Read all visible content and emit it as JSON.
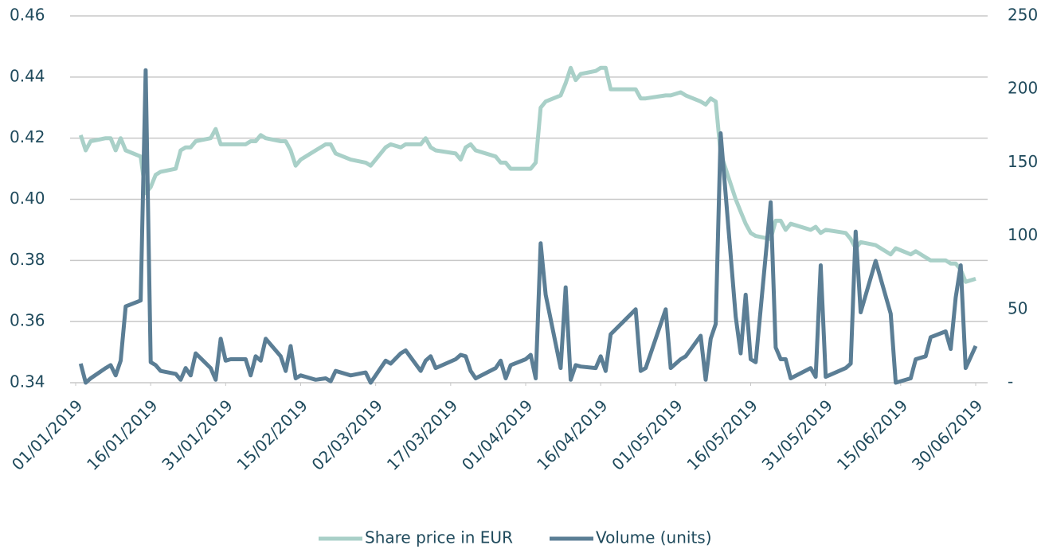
{
  "chart_data": {
    "type": "line",
    "x": [
      "02/01/2019",
      "03/01/2019",
      "04/01/2019",
      "07/01/2019",
      "08/01/2019",
      "09/01/2019",
      "10/01/2019",
      "11/01/2019",
      "14/01/2019",
      "15/01/2019",
      "16/01/2019",
      "17/01/2019",
      "18/01/2019",
      "21/01/2019",
      "22/01/2019",
      "23/01/2019",
      "24/01/2019",
      "25/01/2019",
      "28/01/2019",
      "29/01/2019",
      "30/01/2019",
      "31/01/2019",
      "01/02/2019",
      "04/02/2019",
      "05/02/2019",
      "06/02/2019",
      "07/02/2019",
      "08/02/2019",
      "11/02/2019",
      "12/02/2019",
      "13/02/2019",
      "14/02/2019",
      "15/02/2019",
      "18/02/2019",
      "20/02/2019",
      "21/02/2019",
      "22/02/2019",
      "25/02/2019",
      "28/02/2019",
      "01/03/2019",
      "04/03/2019",
      "05/03/2019",
      "07/03/2019",
      "08/03/2019",
      "11/03/2019",
      "12/03/2019",
      "13/03/2019",
      "14/03/2019",
      "18/03/2019",
      "19/03/2019",
      "20/03/2019",
      "21/03/2019",
      "22/03/2019",
      "26/03/2019",
      "27/03/2019",
      "28/03/2019",
      "29/03/2019",
      "01/04/2019",
      "02/04/2019",
      "03/04/2019",
      "04/04/2019",
      "05/04/2019",
      "08/04/2019",
      "09/04/2019",
      "10/04/2019",
      "11/04/2019",
      "12/04/2019",
      "15/04/2019",
      "16/04/2019",
      "17/04/2019",
      "18/04/2019",
      "23/04/2019",
      "24/04/2019",
      "25/04/2019",
      "29/04/2019",
      "30/04/2019",
      "02/05/2019",
      "03/05/2019",
      "06/05/2019",
      "07/05/2019",
      "08/05/2019",
      "09/05/2019",
      "10/05/2019",
      "13/05/2019",
      "14/05/2019",
      "15/05/2019",
      "16/05/2019",
      "17/05/2019",
      "20/05/2019",
      "21/05/2019",
      "22/05/2019",
      "23/05/2019",
      "24/05/2019",
      "28/05/2019",
      "29/05/2019",
      "30/05/2019",
      "31/05/2019",
      "04/06/2019",
      "05/06/2019",
      "06/06/2019",
      "07/06/2019",
      "10/06/2019",
      "13/06/2019",
      "14/06/2019",
      "17/06/2019",
      "18/06/2019",
      "20/06/2019",
      "21/06/2019",
      "24/06/2019",
      "25/06/2019",
      "26/06/2019",
      "27/06/2019",
      "28/06/2019",
      "30/06/2019"
    ],
    "series": [
      {
        "name": "Share price in EUR",
        "color": "#a9d0c8",
        "values": [
          0.421,
          0.416,
          0.419,
          0.42,
          0.42,
          0.416,
          0.42,
          0.416,
          0.414,
          0.402,
          0.404,
          0.408,
          0.409,
          0.41,
          0.416,
          0.417,
          0.417,
          0.419,
          0.42,
          0.423,
          0.418,
          0.418,
          0.418,
          0.418,
          0.419,
          0.419,
          0.421,
          0.42,
          0.419,
          0.419,
          0.416,
          0.411,
          0.413,
          0.416,
          0.418,
          0.418,
          0.415,
          0.413,
          0.412,
          0.411,
          0.417,
          0.418,
          0.417,
          0.418,
          0.418,
          0.42,
          0.417,
          0.416,
          0.415,
          0.413,
          0.417,
          0.418,
          0.416,
          0.414,
          0.412,
          0.412,
          0.41,
          0.41,
          0.41,
          0.412,
          0.43,
          0.432,
          0.434,
          0.438,
          0.443,
          0.439,
          0.441,
          0.442,
          0.443,
          0.443,
          0.436,
          0.436,
          0.433,
          0.433,
          0.434,
          0.434,
          0.435,
          0.434,
          0.432,
          0.431,
          0.433,
          0.432,
          0.415,
          0.4,
          0.396,
          0.392,
          0.389,
          0.388,
          0.387,
          0.393,
          0.393,
          0.39,
          0.392,
          0.39,
          0.391,
          0.389,
          0.39,
          0.389,
          0.387,
          0.384,
          0.386,
          0.385,
          0.382,
          0.384,
          0.382,
          0.383,
          0.381,
          0.38,
          0.38,
          0.379,
          0.379,
          0.377,
          0.373,
          0.374
        ]
      },
      {
        "name": "Volume (units)",
        "color": "#5b7e95",
        "axis": "y2",
        "values": [
          13,
          0,
          3,
          10,
          12,
          5,
          15,
          52,
          56,
          213,
          14,
          12,
          8,
          6,
          2,
          10,
          5,
          20,
          10,
          2,
          30,
          15,
          16,
          16,
          5,
          18,
          15,
          30,
          18,
          8,
          25,
          3,
          5,
          2,
          3,
          1,
          8,
          5,
          7,
          0,
          15,
          13,
          20,
          22,
          8,
          15,
          18,
          10,
          16,
          19,
          18,
          8,
          3,
          10,
          15,
          3,
          12,
          16,
          19,
          3,
          95,
          60,
          10,
          65,
          2,
          12,
          11,
          10,
          18,
          8,
          33,
          50,
          8,
          10,
          50,
          10,
          16,
          18,
          32,
          2,
          30,
          40,
          170,
          45,
          20,
          60,
          16,
          14,
          123,
          24,
          16,
          16,
          3,
          10,
          4,
          80,
          4,
          10,
          13,
          103,
          48,
          83,
          47,
          0,
          3,
          16,
          18,
          31,
          35,
          23,
          58,
          80,
          10,
          25
        ]
      }
    ],
    "xlim": [
      "01/01/2019",
      "30/06/2019"
    ],
    "xticks": [
      "01/01/2019",
      "16/01/2019",
      "31/01/2019",
      "15/02/2019",
      "02/03/2019",
      "17/03/2019",
      "01/04/2019",
      "16/04/2019",
      "01/05/2019",
      "16/05/2019",
      "31/05/2019",
      "15/06/2019",
      "30/06/2019"
    ],
    "ylim": [
      0.34,
      0.46
    ],
    "yticks": [
      {
        "value": 0.34,
        "label": "0.34"
      },
      {
        "value": 0.36,
        "label": "0.36"
      },
      {
        "value": 0.38,
        "label": "0.38"
      },
      {
        "value": 0.4,
        "label": "0.40"
      },
      {
        "value": 0.42,
        "label": "0.42"
      },
      {
        "value": 0.44,
        "label": "0.44"
      },
      {
        "value": 0.46,
        "label": "0.46"
      }
    ],
    "y2lim": [
      0,
      250
    ],
    "y2ticks": [
      {
        "value": 0,
        "label": "-"
      },
      50,
      100,
      150,
      200,
      250
    ],
    "grid": true,
    "legend": "bottom"
  }
}
